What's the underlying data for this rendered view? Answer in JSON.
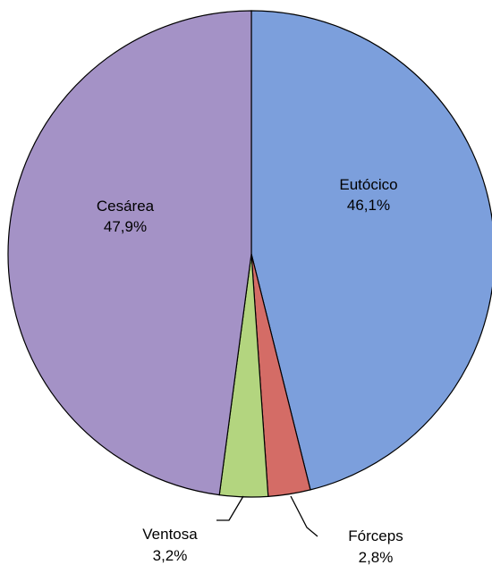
{
  "chart_data": {
    "type": "pie",
    "start_angle_deg": 0,
    "direction": "clockwise",
    "slices": [
      {
        "label": "Eutócico",
        "value": 46.1,
        "value_label": "46,1%",
        "color": "#7c9fdc",
        "label_placement": "inside"
      },
      {
        "label": "Fórceps",
        "value": 2.8,
        "value_label": "2,8%",
        "color": "#d46c66",
        "label_placement": "outside"
      },
      {
        "label": "Ventosa",
        "value": 3.2,
        "value_label": "3,2%",
        "color": "#b3d57f",
        "label_placement": "outside"
      },
      {
        "label": "Cesárea",
        "value": 47.9,
        "value_label": "47,9%",
        "color": "#a492c6",
        "label_placement": "inside"
      }
    ]
  }
}
